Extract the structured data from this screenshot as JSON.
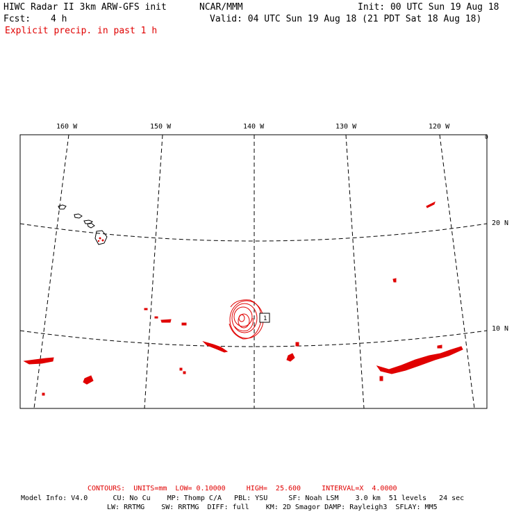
{
  "header": {
    "title": "HIWC Radar II 3km ARW-GFS init",
    "org": "NCAR/MMM",
    "init": "Init: 00 UTC Sun 19 Aug 18",
    "fcst_label": "Fcst:",
    "fcst_value": "4 h",
    "valid": "Valid: 04 UTC Sun 19 Aug 18 (21 PDT Sat 18 Aug 18)",
    "field": "Explicit precip. in past 1 h"
  },
  "map": {
    "lon_labels": [
      "160 W",
      "150 W",
      "140 W",
      "130 W",
      "120 W"
    ],
    "lat_labels": [
      "20 N",
      "10 N"
    ],
    "corner_mark": "0",
    "storm_box_label": "1",
    "precip_color": "#e00000",
    "line_color": "#000000"
  },
  "footer": {
    "contours": "CONTOURS:  UNITS=mm  LOW= 0.10000     HIGH=  25.600     INTERVAL=X  4.0000",
    "model_line1": "Model Info: V4.0      CU: No Cu    MP: Thomp C/A   PBL: YSU     SF: Noah LSM    3.0 km  51 levels   24 sec",
    "model_line2": "LW: RRTMG    SW: RRTMG  DIFF: full    KM: 2D Smagor DAMP: Rayleigh3  SFLAY: MM5"
  }
}
